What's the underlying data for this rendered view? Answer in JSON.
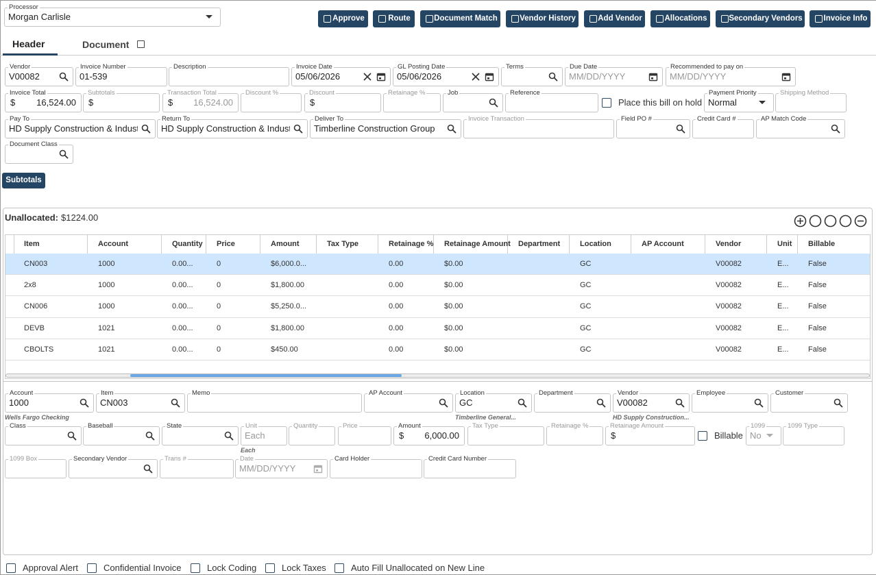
{
  "processor": {
    "label": "Processor",
    "value": "Morgan Carlisle"
  },
  "buttons": [
    "Approve",
    "Route",
    "Document Match",
    "Vendor History",
    "Add Vendor",
    "Allocations",
    "Secondary Vendors",
    "Invoice Info"
  ],
  "tabs": [
    "Header",
    "Document"
  ],
  "header_fields": [
    {
      "label": "Vendor",
      "value": "V00082",
      "icon": "search"
    },
    {
      "label": "Invoice Number",
      "value": "01-539"
    },
    {
      "label": "Description"
    },
    {
      "label": "Invoice Date",
      "value": "05/06/2026",
      "icon": "clear-calendar"
    },
    {
      "label": "GL Posting Date",
      "value": "05/06/2026",
      "icon": "clear-calendar"
    },
    {
      "label": "Terms",
      "icon": "search"
    },
    {
      "label": "Due Date",
      "placeholder": "MM/DD/YYYY",
      "icon": "calendar"
    },
    {
      "label": "Recommended to pay on",
      "placeholder": "MM/DD/YYYY",
      "icon": "calendar"
    },
    {
      "label": "Invoice Total",
      "prefix": "$",
      "value": "16,524.00"
    },
    {
      "label": "Subtotals",
      "prefix": "$",
      "disabled": true
    },
    {
      "label": "Transaction Total",
      "prefix": "$",
      "value": "16,524.00",
      "disabled": true
    },
    {
      "label": "Discount %",
      "disabled": true
    },
    {
      "label": "Discount",
      "prefix": "$",
      "disabled": true
    },
    {
      "label": "Retainage %",
      "disabled": true
    },
    {
      "label": "Job",
      "icon": "search"
    },
    {
      "label": "Reference"
    },
    {
      "type": "checkbox",
      "label": "Place this bill on hold"
    },
    {
      "label": "Payment Priority",
      "value": "Normal",
      "icon": "dropdown"
    },
    {
      "label": "Shipping Method",
      "disabled": true
    },
    {
      "label": "Pay To",
      "value": "HD Supply Construction & Indust",
      "icon": "search"
    },
    {
      "label": "Return To",
      "value": "HD Supply Construction & Indust",
      "icon": "search"
    },
    {
      "label": "Deliver To",
      "value": "Timberline Construction Group",
      "icon": "search"
    },
    {
      "label": "Invoice Transaction",
      "disabled": true
    },
    {
      "label": "Field PO #",
      "icon": "search"
    },
    {
      "label": "Credit Card #"
    },
    {
      "label": "AP Match Code",
      "icon": "search"
    },
    {
      "label": "Document Class",
      "icon": "search"
    }
  ],
  "subtotals_button": "Subtotals",
  "unallocated": {
    "label": "Unallocated:",
    "value": "$1224.00"
  },
  "grid": {
    "columns": [
      "Item",
      "Account",
      "Quantity",
      "Price",
      "Amount",
      "Tax Type",
      "Retainage %",
      "Retainage Amount",
      "Department",
      "Location",
      "AP Account",
      "Vendor",
      "Unit",
      "Billable"
    ],
    "rows": [
      [
        "CN003",
        "1000",
        "0.00...",
        "0",
        "$6,000.0...",
        null,
        "0.00",
        "$0.00",
        null,
        "GC",
        null,
        "V00082",
        "E...",
        "False"
      ],
      [
        "2x8",
        "1000",
        "0.00...",
        "0",
        "$1,800.00",
        null,
        "0.00",
        "$0.00",
        null,
        "GC",
        null,
        "V00082",
        "E...",
        "False"
      ],
      [
        "CN006",
        "1000",
        "0.00...",
        "0",
        "$5,250.0...",
        null,
        "0.00",
        "$0.00",
        null,
        "GC",
        null,
        "V00082",
        "E...",
        "False"
      ],
      [
        "DEVB",
        "1021",
        "0.00...",
        "0",
        "$1,800.00",
        null,
        "0.00",
        "$0.00",
        null,
        "GC",
        null,
        "V00082",
        "E...",
        "False"
      ],
      [
        "CBOLTS",
        "1021",
        "0.00...",
        "0",
        "$450.00",
        null,
        "0.00",
        "$0.00",
        null,
        "GC",
        null,
        "V00082",
        "E...",
        "False"
      ]
    ]
  },
  "detail_fields": [
    {
      "label": "Account",
      "value": "1000",
      "icon": "search",
      "note": "Wells Fargo Checking"
    },
    {
      "label": "Item",
      "value": "CN003",
      "icon": "search"
    },
    {
      "label": "Memo"
    },
    {
      "label": "AP Account",
      "icon": "search"
    },
    {
      "label": "Location",
      "value": "GC",
      "icon": "search",
      "note": "Timberline General..."
    },
    {
      "label": "Department",
      "icon": "search"
    },
    {
      "label": "Vendor",
      "value": "V00082",
      "icon": "search",
      "note": "HD Supply Construction..."
    },
    {
      "label": "Employee",
      "icon": "search"
    },
    {
      "label": "Customer",
      "icon": "search"
    },
    {
      "label": "Class",
      "icon": "search"
    },
    {
      "label": "Baseball",
      "icon": "search"
    },
    {
      "label": "State",
      "icon": "search"
    },
    {
      "label": "Unit",
      "placeholder": "Each",
      "disabled": true,
      "note": "Each"
    },
    {
      "label": "Quantity",
      "disabled": true
    },
    {
      "label": "Price",
      "disabled": true
    },
    {
      "label": "Amount",
      "prefix": "$",
      "value": "6,000.00"
    },
    {
      "label": "Tax Type",
      "disabled": true
    },
    {
      "label": "Retainage %",
      "disabled": true
    },
    {
      "label": "Retainage Amount",
      "prefix": "$",
      "disabled": true
    },
    {
      "type": "checkbox",
      "label": "Billable"
    },
    {
      "label": "1099",
      "value": "No",
      "icon": "dropdown",
      "disabled": true
    },
    {
      "label": "1099 Type",
      "disabled": true
    },
    {
      "label": "1099 Box",
      "disabled": true
    },
    {
      "label": "Secondary Vendor",
      "icon": "search"
    },
    {
      "label": "Trans #",
      "disabled": true
    },
    {
      "label": "Date",
      "placeholder": "MM/DD/YYYY",
      "icon": "calendar",
      "disabled": true
    },
    {
      "label": "Card Holder"
    },
    {
      "label": "Credit Card Number"
    }
  ],
  "footer_checkboxes": [
    "Approval Alert",
    "Confidential Invoice",
    "Lock Coding",
    "Lock Taxes",
    "Auto Fill Unallocated on New Line"
  ]
}
